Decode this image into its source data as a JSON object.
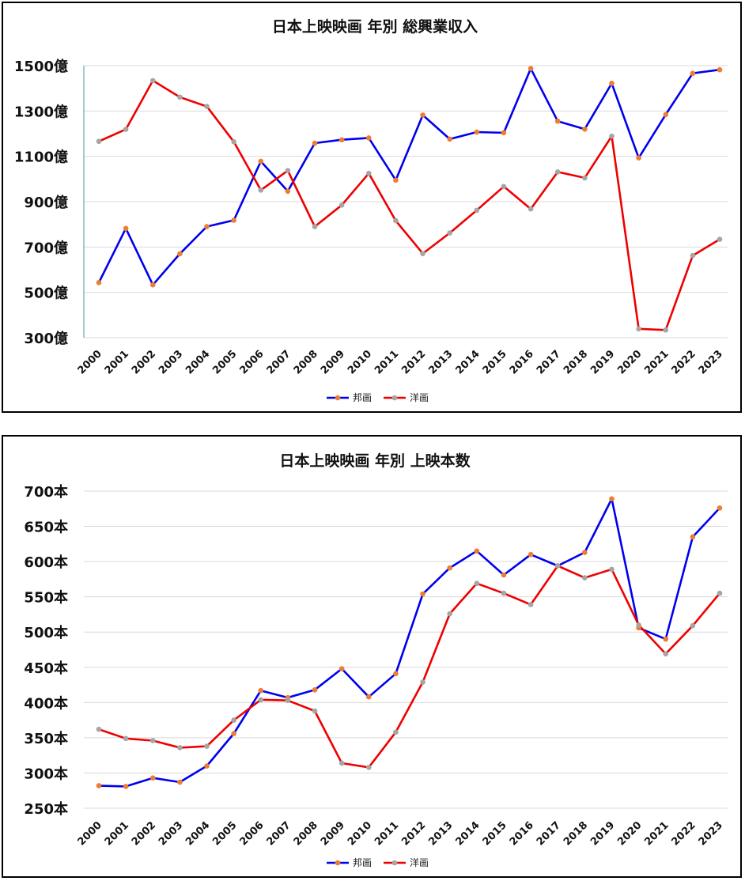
{
  "chart_data": [
    {
      "type": "line",
      "title": "日本上映映画 年別 総興業収入",
      "y_unit": "億",
      "ylim": [
        300,
        1500
      ],
      "y_ticks": [
        300,
        500,
        700,
        900,
        1100,
        1300,
        1500
      ],
      "grid": true,
      "legend_position": "bottom",
      "categories": [
        "2000",
        "2001",
        "2002",
        "2003",
        "2004",
        "2005",
        "2006",
        "2007",
        "2008",
        "2009",
        "2010",
        "2011",
        "2012",
        "2013",
        "2014",
        "2015",
        "2016",
        "2017",
        "2018",
        "2019",
        "2020",
        "2021",
        "2022",
        "2023"
      ],
      "series": [
        {
          "name": "邦画",
          "color": "#0000ee",
          "marker_color": "#ed7d31",
          "values": [
            543,
            782,
            533,
            670,
            790,
            818,
            1078,
            946,
            1158,
            1173,
            1181,
            995,
            1282,
            1176,
            1207,
            1204,
            1487,
            1255,
            1220,
            1422,
            1093,
            1284,
            1466,
            1482
          ]
        },
        {
          "name": "洋画",
          "color": "#ee0000",
          "marker_color": "#a5a5a5",
          "values": [
            1166,
            1219,
            1434,
            1361,
            1320,
            1164,
            951,
            1037,
            790,
            885,
            1025,
            816,
            671,
            762,
            862,
            967,
            868,
            1031,
            1005,
            1189,
            339,
            334,
            662,
            734
          ]
        }
      ]
    },
    {
      "type": "line",
      "title": "日本上映映画 年別 上映本数",
      "y_unit": "本",
      "ylim": [
        250,
        700
      ],
      "y_ticks": [
        250,
        300,
        350,
        400,
        450,
        500,
        550,
        600,
        650,
        700
      ],
      "grid": true,
      "legend_position": "bottom",
      "categories": [
        "2000",
        "2001",
        "2002",
        "2003",
        "2004",
        "2005",
        "2006",
        "2007",
        "2008",
        "2009",
        "2010",
        "2011",
        "2012",
        "2013",
        "2014",
        "2015",
        "2016",
        "2017",
        "2018",
        "2019",
        "2020",
        "2021",
        "2022",
        "2023"
      ],
      "series": [
        {
          "name": "邦画",
          "color": "#0000ee",
          "marker_color": "#ed7d31",
          "values": [
            282,
            281,
            293,
            287,
            310,
            356,
            417,
            407,
            418,
            448,
            408,
            441,
            554,
            591,
            615,
            581,
            610,
            594,
            613,
            689,
            506,
            490,
            635,
            676
          ]
        },
        {
          "name": "洋画",
          "color": "#ee0000",
          "marker_color": "#a5a5a5",
          "values": [
            362,
            349,
            346,
            336,
            338,
            375,
            404,
            403,
            388,
            314,
            308,
            358,
            429,
            526,
            569,
            555,
            539,
            594,
            577,
            589,
            510,
            469,
            509,
            555
          ]
        }
      ]
    }
  ]
}
